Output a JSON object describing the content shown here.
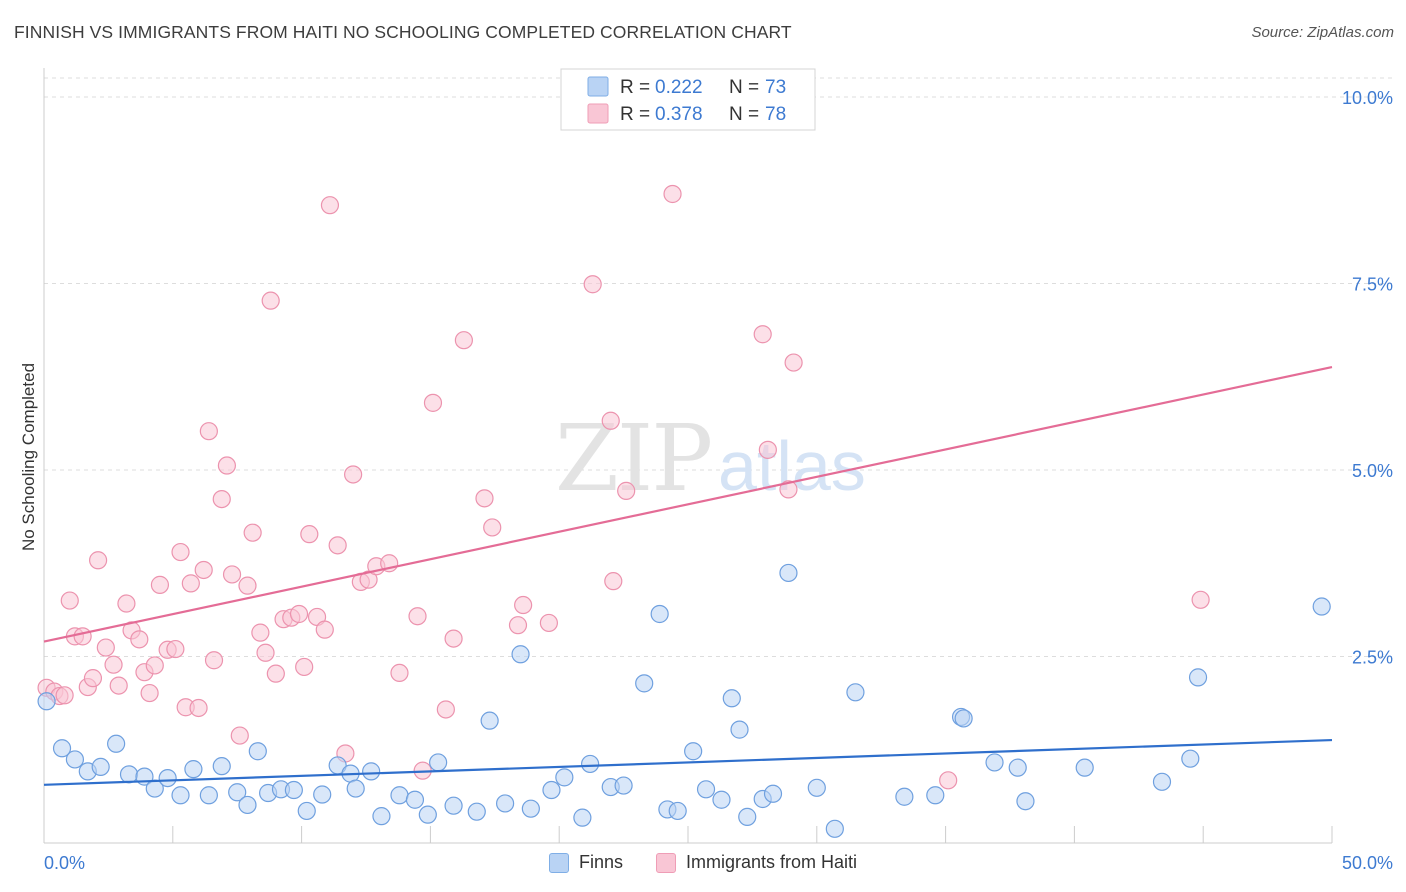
{
  "header": {
    "title": "FINNISH VS IMMIGRANTS FROM HAITI NO SCHOOLING COMPLETED CORRELATION CHART",
    "source": "Source: ZipAtlas.com"
  },
  "watermark": {
    "zip": "ZIP",
    "atlas": "atlas"
  },
  "colors": {
    "finns_fill": "#b9d3f4",
    "finns_stroke": "#6fa0df",
    "finns_line": "#2f6fcc",
    "haiti_fill": "#f9c6d5",
    "haiti_stroke": "#ec93ae",
    "haiti_line": "#e46c96",
    "tick_label": "#3d7ad1",
    "grid": "#dddddd"
  },
  "legend_top": {
    "rows": [
      {
        "series": "finns",
        "r_label": "R =",
        "r_value": "0.222",
        "n_label": "N =",
        "n_value": "73"
      },
      {
        "series": "haiti",
        "r_label": "R =",
        "r_value": "0.378",
        "n_label": "N =",
        "n_value": "78"
      }
    ]
  },
  "legend_bottom": {
    "finns": "Finns",
    "haiti": "Immigrants from Haiti"
  },
  "chart_data": {
    "type": "scatter",
    "title": "FINNISH VS IMMIGRANTS FROM HAITI NO SCHOOLING COMPLETED CORRELATION CHART",
    "xlabel": "",
    "ylabel": "No Schooling Completed",
    "xlim": [
      0,
      50
    ],
    "ylim": [
      0,
      10.4
    ],
    "x_tick_labels": [
      "0.0%",
      "50.0%"
    ],
    "y_ticks": [
      2.5,
      5.0,
      7.5,
      10.0
    ],
    "y_tick_labels": [
      "2.5%",
      "5.0%",
      "7.5%",
      "10.0%"
    ],
    "grid": "horizontal dashed",
    "legend_position": "top-center",
    "series": [
      {
        "name": "Finns",
        "color": "#6fa0df",
        "trend": {
          "x": [
            0,
            50
          ],
          "y": [
            0.78,
            1.38
          ]
        },
        "points": [
          [
            0.1,
            1.9
          ],
          [
            0.7,
            1.27
          ],
          [
            1.2,
            1.12
          ],
          [
            1.7,
            0.96
          ],
          [
            2.2,
            1.02
          ],
          [
            2.8,
            1.33
          ],
          [
            3.3,
            0.92
          ],
          [
            3.9,
            0.89
          ],
          [
            4.3,
            0.73
          ],
          [
            4.8,
            0.87
          ],
          [
            5.3,
            0.64
          ],
          [
            5.8,
            0.99
          ],
          [
            6.4,
            0.64
          ],
          [
            6.9,
            1.03
          ],
          [
            7.5,
            0.68
          ],
          [
            7.9,
            0.51
          ],
          [
            8.3,
            1.23
          ],
          [
            8.7,
            0.67
          ],
          [
            9.2,
            0.72
          ],
          [
            9.7,
            0.71
          ],
          [
            10.2,
            0.43
          ],
          [
            10.8,
            0.65
          ],
          [
            11.4,
            1.04
          ],
          [
            11.9,
            0.93
          ],
          [
            12.1,
            0.73
          ],
          [
            12.7,
            0.96
          ],
          [
            13.1,
            0.36
          ],
          [
            13.8,
            0.64
          ],
          [
            14.4,
            0.58
          ],
          [
            14.9,
            0.38
          ],
          [
            15.3,
            1.08
          ],
          [
            15.9,
            0.5
          ],
          [
            16.8,
            0.42
          ],
          [
            17.3,
            1.64
          ],
          [
            17.9,
            0.53
          ],
          [
            18.5,
            2.53
          ],
          [
            18.9,
            0.46
          ],
          [
            19.7,
            0.71
          ],
          [
            20.2,
            0.88
          ],
          [
            20.9,
            0.34
          ],
          [
            21.2,
            1.06
          ],
          [
            22.0,
            0.75
          ],
          [
            22.5,
            0.77
          ],
          [
            23.3,
            2.14
          ],
          [
            23.9,
            3.07
          ],
          [
            24.2,
            0.45
          ],
          [
            24.6,
            0.43
          ],
          [
            25.2,
            1.23
          ],
          [
            25.7,
            0.72
          ],
          [
            26.3,
            0.58
          ],
          [
            26.7,
            1.94
          ],
          [
            27.0,
            1.52
          ],
          [
            27.3,
            0.35
          ],
          [
            27.9,
            0.59
          ],
          [
            28.3,
            0.66
          ],
          [
            28.9,
            3.62
          ],
          [
            30.0,
            0.74
          ],
          [
            30.7,
            0.19
          ],
          [
            31.5,
            2.02
          ],
          [
            33.4,
            0.62
          ],
          [
            34.6,
            0.64
          ],
          [
            35.6,
            1.69
          ],
          [
            35.7,
            1.67
          ],
          [
            36.9,
            1.08
          ],
          [
            37.8,
            1.01
          ],
          [
            38.1,
            0.56
          ],
          [
            40.4,
            1.01
          ],
          [
            43.4,
            0.82
          ],
          [
            44.5,
            1.13
          ],
          [
            44.8,
            2.22
          ],
          [
            49.6,
            3.17
          ]
        ]
      },
      {
        "name": "Immigrants from Haiti",
        "color": "#ec93ae",
        "trend": {
          "x": [
            0,
            50
          ],
          "y": [
            2.7,
            6.38
          ]
        },
        "points": [
          [
            0.1,
            2.08
          ],
          [
            0.4,
            2.03
          ],
          [
            0.6,
            1.97
          ],
          [
            0.8,
            1.98
          ],
          [
            1.0,
            3.25
          ],
          [
            1.2,
            2.77
          ],
          [
            1.5,
            2.77
          ],
          [
            1.7,
            2.09
          ],
          [
            1.9,
            2.21
          ],
          [
            2.1,
            3.79
          ],
          [
            2.4,
            2.62
          ],
          [
            2.7,
            2.39
          ],
          [
            2.9,
            2.11
          ],
          [
            3.2,
            3.21
          ],
          [
            3.4,
            2.85
          ],
          [
            3.7,
            2.73
          ],
          [
            3.9,
            2.29
          ],
          [
            4.1,
            2.01
          ],
          [
            4.3,
            2.38
          ],
          [
            4.5,
            3.46
          ],
          [
            4.8,
            2.59
          ],
          [
            5.1,
            2.6
          ],
          [
            5.3,
            3.9
          ],
          [
            5.5,
            1.82
          ],
          [
            5.7,
            3.48
          ],
          [
            6.0,
            1.81
          ],
          [
            6.2,
            3.66
          ],
          [
            6.4,
            5.52
          ],
          [
            6.6,
            2.45
          ],
          [
            6.9,
            4.61
          ],
          [
            7.1,
            5.06
          ],
          [
            7.3,
            3.6
          ],
          [
            7.6,
            1.44
          ],
          [
            7.9,
            3.45
          ],
          [
            8.1,
            4.16
          ],
          [
            8.4,
            2.82
          ],
          [
            8.6,
            2.55
          ],
          [
            8.8,
            7.27
          ],
          [
            9.0,
            2.27
          ],
          [
            9.3,
            3.0
          ],
          [
            9.6,
            3.02
          ],
          [
            9.9,
            3.07
          ],
          [
            10.1,
            2.36
          ],
          [
            10.3,
            4.14
          ],
          [
            10.6,
            3.03
          ],
          [
            10.9,
            2.86
          ],
          [
            11.1,
            8.55
          ],
          [
            11.4,
            3.99
          ],
          [
            11.7,
            1.2
          ],
          [
            12.0,
            4.94
          ],
          [
            12.3,
            3.5
          ],
          [
            12.6,
            3.53
          ],
          [
            12.9,
            3.71
          ],
          [
            13.4,
            3.75
          ],
          [
            13.8,
            2.28
          ],
          [
            14.5,
            3.04
          ],
          [
            14.7,
            0.97
          ],
          [
            15.1,
            5.9
          ],
          [
            15.6,
            1.79
          ],
          [
            15.9,
            2.74
          ],
          [
            16.3,
            6.74
          ],
          [
            17.1,
            4.62
          ],
          [
            17.4,
            4.23
          ],
          [
            18.4,
            2.92
          ],
          [
            18.6,
            3.19
          ],
          [
            19.6,
            2.95
          ],
          [
            21.3,
            7.49
          ],
          [
            22.0,
            5.66
          ],
          [
            22.1,
            3.51
          ],
          [
            22.6,
            4.72
          ],
          [
            24.4,
            8.7
          ],
          [
            27.9,
            6.82
          ],
          [
            28.1,
            5.27
          ],
          [
            28.9,
            4.74
          ],
          [
            29.1,
            6.44
          ],
          [
            35.1,
            0.84
          ],
          [
            44.9,
            3.26
          ]
        ]
      }
    ]
  }
}
